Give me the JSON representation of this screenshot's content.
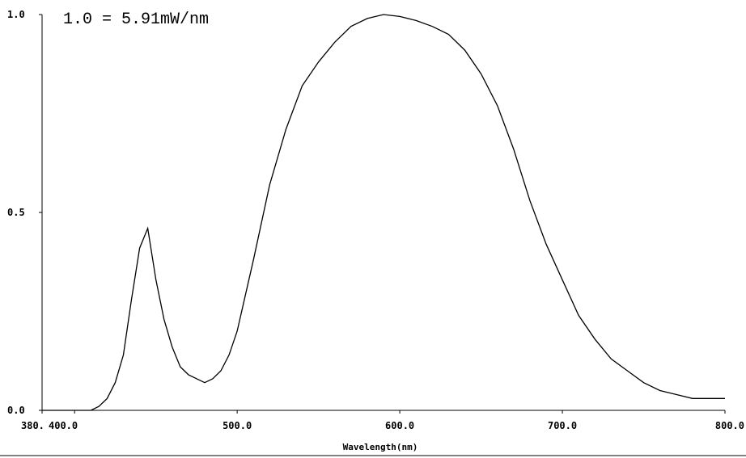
{
  "chart_data": {
    "type": "line",
    "title": "",
    "annotation": "1.0 = 5.91mW/nm",
    "xlabel": "Wavelength(nm)",
    "ylabel": "",
    "xlim": [
      380,
      800
    ],
    "ylim": [
      0,
      1.0
    ],
    "grid": false,
    "x_ticks": [
      {
        "value": 380,
        "label": "380."
      },
      {
        "value": 400,
        "label": "400.0"
      },
      {
        "value": 500,
        "label": "500.0"
      },
      {
        "value": 600,
        "label": "600.0"
      },
      {
        "value": 700,
        "label": "700.0"
      },
      {
        "value": 800,
        "label": "800.0"
      }
    ],
    "y_ticks": [
      {
        "value": 0.0,
        "label": "0.0"
      },
      {
        "value": 0.5,
        "label": "0.5"
      },
      {
        "value": 1.0,
        "label": "1.0"
      }
    ],
    "series": [
      {
        "color": "#000000",
        "x": [
          380,
          390,
          400,
          410,
          415,
          420,
          425,
          430,
          435,
          440,
          445,
          450,
          455,
          460,
          465,
          470,
          475,
          480,
          485,
          490,
          495,
          500,
          510,
          520,
          530,
          540,
          550,
          560,
          570,
          580,
          590,
          600,
          610,
          620,
          630,
          640,
          650,
          660,
          670,
          680,
          690,
          700,
          710,
          720,
          730,
          740,
          750,
          760,
          770,
          780,
          790,
          800
        ],
        "y": [
          0.0,
          0.0,
          0.0,
          0.0,
          0.01,
          0.03,
          0.07,
          0.14,
          0.28,
          0.41,
          0.46,
          0.33,
          0.23,
          0.16,
          0.11,
          0.09,
          0.08,
          0.07,
          0.08,
          0.1,
          0.14,
          0.2,
          0.38,
          0.57,
          0.71,
          0.82,
          0.88,
          0.93,
          0.97,
          0.99,
          1.0,
          0.995,
          0.985,
          0.97,
          0.95,
          0.91,
          0.85,
          0.77,
          0.66,
          0.53,
          0.42,
          0.33,
          0.24,
          0.18,
          0.13,
          0.1,
          0.07,
          0.05,
          0.04,
          0.03,
          0.03,
          0.03
        ]
      }
    ]
  }
}
